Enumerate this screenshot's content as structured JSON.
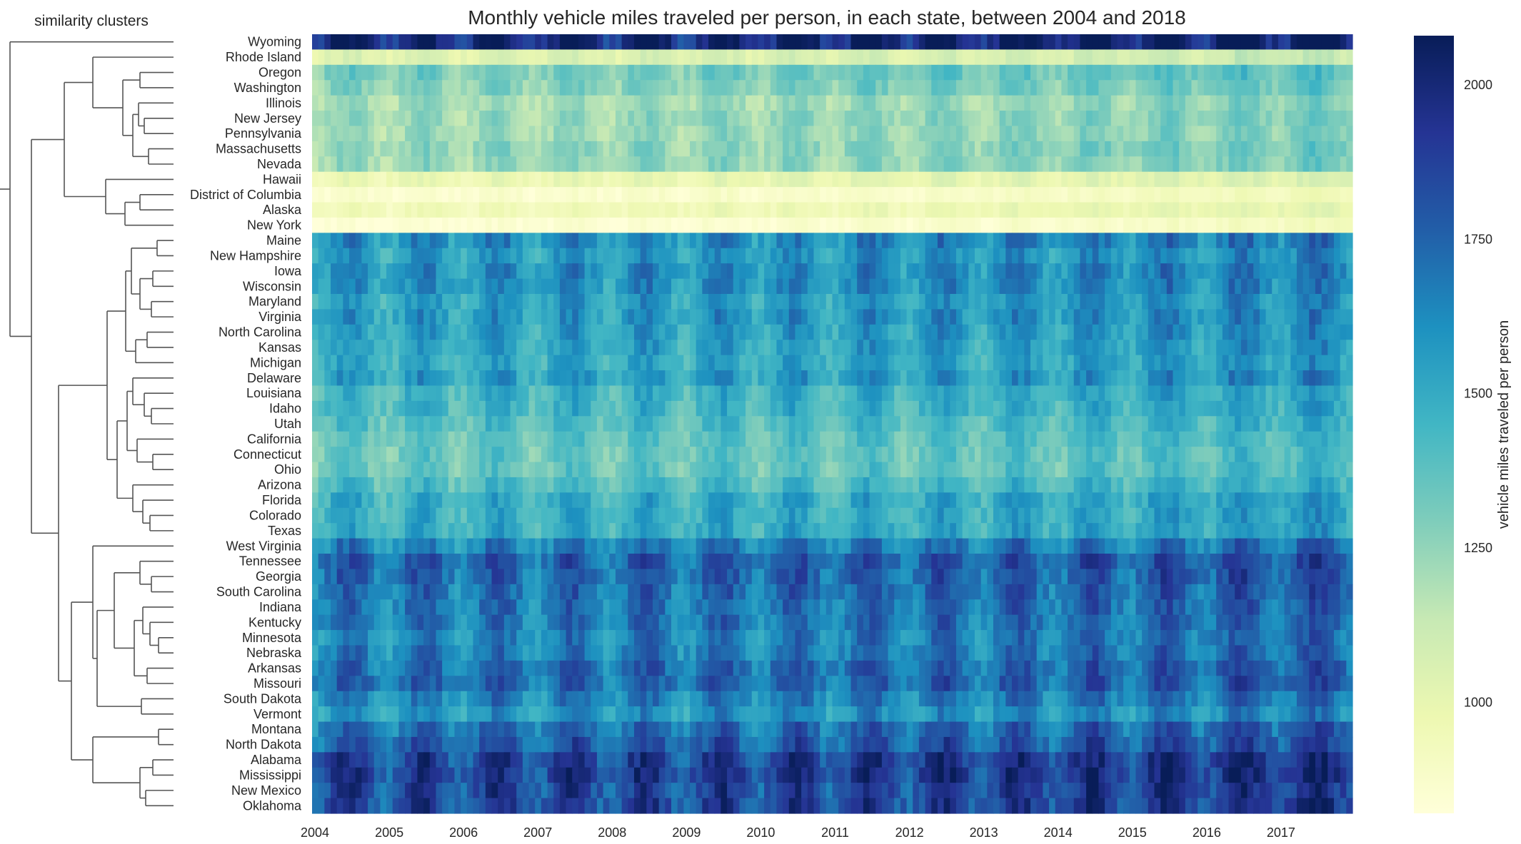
{
  "chart_data": {
    "type": "heatmap",
    "title": "Monthly vehicle miles traveled per person, in each state, between 2004 and 2018",
    "dendrogram_label": "similarity clusters",
    "colorbar_label": "vehicle miles traveled per person",
    "colorscale": "YlGnBu",
    "color_stops": [
      "#ffffd9",
      "#edf8b1",
      "#c7e9b4",
      "#7fcdbb",
      "#41b6c4",
      "#1d91c0",
      "#225ea8",
      "#253494",
      "#081d58"
    ],
    "vmin": 820,
    "vmax": 2080,
    "colorbar_ticks": [
      1000,
      1250,
      1500,
      1750,
      2000
    ],
    "x_ticks": [
      "2004",
      "2005",
      "2006",
      "2007",
      "2008",
      "2009",
      "2010",
      "2011",
      "2012",
      "2013",
      "2014",
      "2015",
      "2016",
      "2017"
    ],
    "months": 168,
    "states": [
      {
        "name": "Wyoming",
        "mean": 2010
      },
      {
        "name": "Rhode Island",
        "mean": 1060
      },
      {
        "name": "Oregon",
        "mean": 1330
      },
      {
        "name": "Washington",
        "mean": 1290
      },
      {
        "name": "Illinois",
        "mean": 1230
      },
      {
        "name": "New Jersey",
        "mean": 1250
      },
      {
        "name": "Pennsylvania",
        "mean": 1240
      },
      {
        "name": "Massachusetts",
        "mean": 1270
      },
      {
        "name": "Nevada",
        "mean": 1250
      },
      {
        "name": "Hawaii",
        "mean": 1000
      },
      {
        "name": "District of Columbia",
        "mean": 880
      },
      {
        "name": "Alaska",
        "mean": 960
      },
      {
        "name": "New York",
        "mean": 860
      },
      {
        "name": "Maine",
        "mean": 1620
      },
      {
        "name": "New Hampshire",
        "mean": 1560
      },
      {
        "name": "Iowa",
        "mean": 1610
      },
      {
        "name": "Wisconsin",
        "mean": 1600
      },
      {
        "name": "Maryland",
        "mean": 1550
      },
      {
        "name": "Virginia",
        "mean": 1580
      },
      {
        "name": "North Carolina",
        "mean": 1550
      },
      {
        "name": "Kansas",
        "mean": 1530
      },
      {
        "name": "Michigan",
        "mean": 1510
      },
      {
        "name": "Delaware",
        "mean": 1560
      },
      {
        "name": "Louisiana",
        "mean": 1470
      },
      {
        "name": "Idaho",
        "mean": 1460
      },
      {
        "name": "Utah",
        "mean": 1420
      },
      {
        "name": "California",
        "mean": 1380
      },
      {
        "name": "Connecticut",
        "mean": 1360
      },
      {
        "name": "Ohio",
        "mean": 1360
      },
      {
        "name": "Arizona",
        "mean": 1420
      },
      {
        "name": "Florida",
        "mean": 1500
      },
      {
        "name": "Colorado",
        "mean": 1490
      },
      {
        "name": "Texas",
        "mean": 1500
      },
      {
        "name": "West Virginia",
        "mean": 1660
      },
      {
        "name": "Tennessee",
        "mean": 1760
      },
      {
        "name": "Georgia",
        "mean": 1750
      },
      {
        "name": "South Carolina",
        "mean": 1720
      },
      {
        "name": "Indiana",
        "mean": 1700
      },
      {
        "name": "Kentucky",
        "mean": 1690
      },
      {
        "name": "Minnesota",
        "mean": 1660
      },
      {
        "name": "Nebraska",
        "mean": 1680
      },
      {
        "name": "Arkansas",
        "mean": 1730
      },
      {
        "name": "Missouri",
        "mean": 1740
      },
      {
        "name": "South Dakota",
        "mean": 1650
      },
      {
        "name": "Vermont",
        "mean": 1580
      },
      {
        "name": "Montana",
        "mean": 1720
      },
      {
        "name": "North Dakota",
        "mean": 1780
      },
      {
        "name": "Alabama",
        "mean": 1880
      },
      {
        "name": "Mississippi",
        "mean": 1900
      },
      {
        "name": "New Mexico",
        "mean": 1860
      },
      {
        "name": "Oklahoma",
        "mean": 1870
      }
    ]
  }
}
